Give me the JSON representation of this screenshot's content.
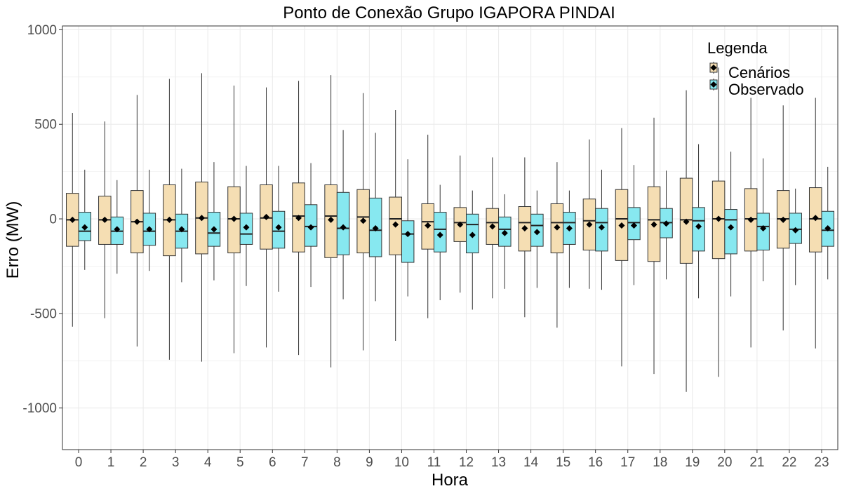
{
  "chart_data": {
    "type": "boxplot",
    "title": "Ponto de Conexão Grupo IGAPORA PINDAI",
    "xlabel": "Hora",
    "ylabel": "Erro (MW)",
    "ylim": [
      -1220,
      1020
    ],
    "yticks": [
      1000,
      500,
      0,
      -500,
      -1000
    ],
    "ytick_labels": [
      "1000",
      "500",
      "0",
      "-500",
      "-1000"
    ],
    "categories": [
      "0",
      "1",
      "2",
      "3",
      "4",
      "5",
      "6",
      "7",
      "8",
      "9",
      "10",
      "11",
      "12",
      "13",
      "14",
      "15",
      "16",
      "17",
      "18",
      "19",
      "20",
      "21",
      "22",
      "23"
    ],
    "legend": {
      "title": "Legenda",
      "position": "top-right",
      "entries": [
        "Cenários",
        "Observado"
      ]
    },
    "colors": {
      "Cenários": "#f5deb3",
      "Observado": "#87e8f0",
      "mean": "#000000",
      "grid": "#ebebeb"
    },
    "series": [
      {
        "name": "Cenários",
        "min": [
          -570,
          -525,
          -675,
          -745,
          -755,
          -710,
          -680,
          -720,
          -785,
          -695,
          -645,
          -525,
          -390,
          -420,
          -520,
          -575,
          -370,
          -780,
          -820,
          -915,
          -835,
          -680,
          -590,
          -685
        ],
        "q1": [
          -145,
          -135,
          -180,
          -195,
          -185,
          -180,
          -160,
          -175,
          -205,
          -180,
          -190,
          -160,
          -120,
          -135,
          -170,
          -180,
          -165,
          -220,
          -225,
          -235,
          -210,
          -170,
          -155,
          -175
        ],
        "median": [
          -5,
          -5,
          -15,
          -5,
          5,
          0,
          5,
          15,
          15,
          10,
          0,
          -15,
          -20,
          -20,
          -20,
          -20,
          -10,
          0,
          -5,
          -5,
          0,
          0,
          0,
          0
        ],
        "q3": [
          135,
          120,
          150,
          180,
          195,
          170,
          180,
          190,
          180,
          155,
          115,
          80,
          60,
          55,
          65,
          80,
          105,
          155,
          170,
          215,
          200,
          160,
          150,
          165
        ],
        "max": [
          560,
          515,
          655,
          740,
          770,
          705,
          695,
          730,
          760,
          665,
          575,
          445,
          335,
          325,
          325,
          300,
          420,
          480,
          535,
          680,
          800,
          640,
          600,
          640
        ],
        "mean": [
          -5,
          -5,
          -15,
          -5,
          5,
          0,
          10,
          5,
          -5,
          -10,
          -30,
          -35,
          -30,
          -40,
          -50,
          -45,
          -30,
          -35,
          -30,
          -15,
          0,
          -5,
          -5,
          5
        ]
      },
      {
        "name": "Observado",
        "min": [
          -270,
          -290,
          -275,
          -335,
          -325,
          -355,
          -385,
          -360,
          -425,
          -435,
          -410,
          -430,
          -480,
          -370,
          -365,
          -365,
          -375,
          -350,
          -320,
          -420,
          -410,
          -330,
          -350,
          -320
        ],
        "q1": [
          -115,
          -135,
          -140,
          -155,
          -145,
          -135,
          -155,
          -145,
          -190,
          -200,
          -230,
          -175,
          -180,
          -145,
          -145,
          -135,
          -170,
          -110,
          -100,
          -170,
          -185,
          -165,
          -130,
          -145
        ],
        "median": [
          -65,
          -65,
          -65,
          -65,
          -75,
          -80,
          -65,
          -40,
          -50,
          -60,
          -80,
          -55,
          -30,
          -55,
          -35,
          -20,
          -20,
          -20,
          -20,
          -10,
          -5,
          -40,
          -55,
          -60
        ],
        "q3": [
          35,
          10,
          30,
          25,
          35,
          30,
          40,
          75,
          140,
          110,
          -10,
          35,
          25,
          10,
          25,
          35,
          55,
          60,
          55,
          60,
          50,
          30,
          30,
          40
        ],
        "max": [
          260,
          205,
          260,
          265,
          300,
          280,
          280,
          295,
          470,
          455,
          315,
          180,
          150,
          130,
          150,
          150,
          260,
          285,
          255,
          395,
          355,
          320,
          160,
          275
        ],
        "mean": [
          -45,
          -55,
          -55,
          -55,
          -55,
          -45,
          -45,
          -45,
          -45,
          -50,
          -80,
          -85,
          -85,
          -75,
          -70,
          -50,
          -45,
          -35,
          -25,
          -40,
          -45,
          -50,
          -60,
          -50
        ]
      }
    ]
  }
}
